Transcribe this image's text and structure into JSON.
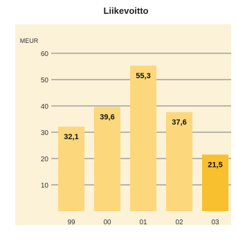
{
  "chart_data": {
    "type": "bar",
    "title": "Liikevoitto",
    "unit": "MEUR",
    "categories": [
      "99",
      "00",
      "01",
      "02",
      "03"
    ],
    "values": [
      32.1,
      39.6,
      55.3,
      37.6,
      21.5
    ],
    "value_labels": [
      "32,1",
      "39,6",
      "55,3",
      "37,6",
      "21,5"
    ],
    "ylim": [
      0,
      60
    ],
    "yticks": [
      "10",
      "20",
      "30",
      "40",
      "50",
      "60"
    ],
    "grid": true,
    "colors": {
      "background": "#fbf2d8",
      "bar": "#fcd77c",
      "bar_highlight": "#f8c02e",
      "grid": "#8e8e8e"
    },
    "highlight_index": 4
  }
}
